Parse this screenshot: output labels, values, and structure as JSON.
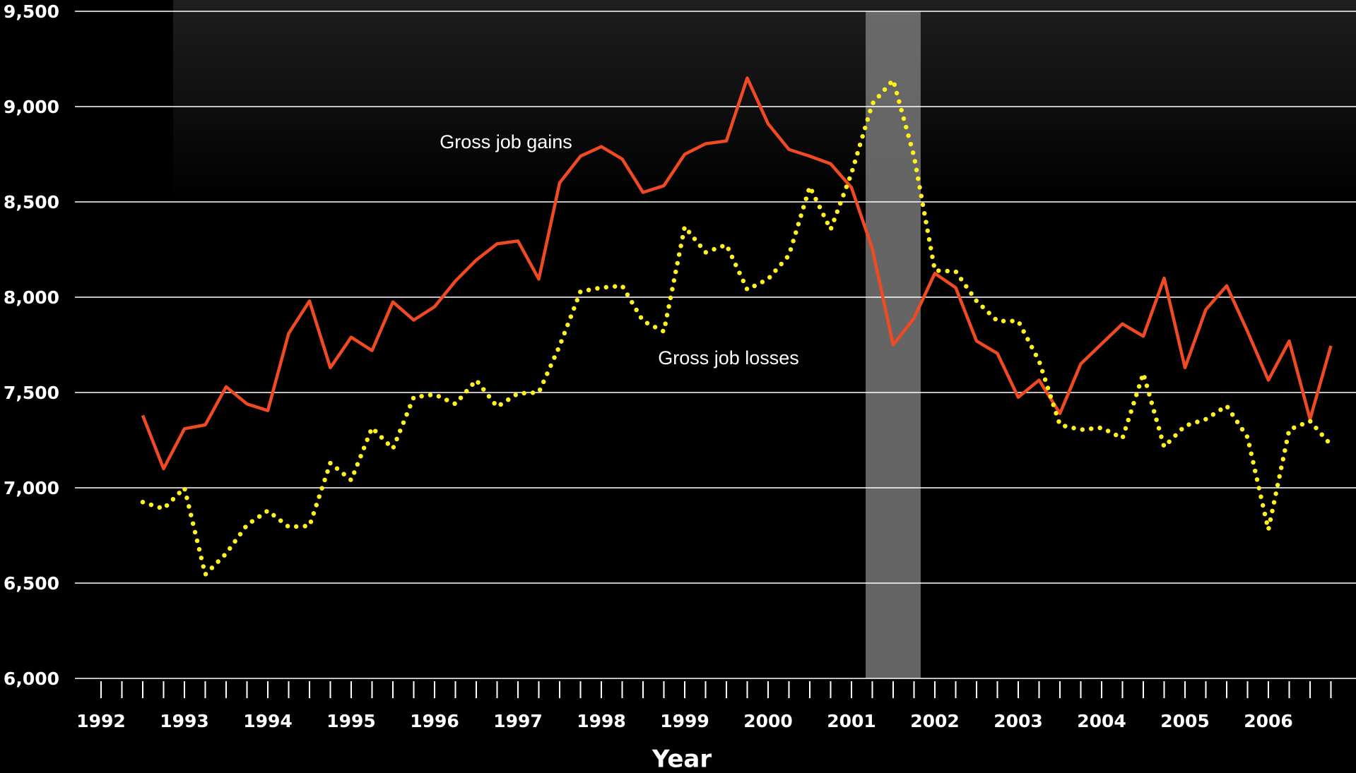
{
  "chart_data": {
    "type": "line",
    "x_label": "Year",
    "x": [
      1992.5,
      1992.75,
      1993,
      1993.25,
      1993.5,
      1993.75,
      1994,
      1994.25,
      1994.5,
      1994.75,
      1995,
      1995.25,
      1995.5,
      1995.75,
      1996,
      1996.25,
      1996.5,
      1996.75,
      1997,
      1997.25,
      1997.5,
      1997.75,
      1998,
      1998.25,
      1998.5,
      1998.75,
      1999,
      1999.25,
      1999.5,
      1999.75,
      2000,
      2000.25,
      2000.5,
      2000.75,
      2001,
      2001.25,
      2001.5,
      2001.75,
      2002,
      2002.25,
      2002.5,
      2002.75,
      2003,
      2003.25,
      2003.5,
      2003.75,
      2004,
      2004.25,
      2004.5,
      2004.75,
      2005,
      2005.25,
      2005.5,
      2005.75,
      2006,
      2006.25,
      2006.5,
      2006.75
    ],
    "series": [
      {
        "name": "Gross job gains",
        "color": "#f04a23",
        "style": "solid",
        "values": [
          7380,
          7100,
          7310,
          7330,
          7530,
          7440,
          7405,
          7810,
          7980,
          7630,
          7790,
          7720,
          7975,
          7880,
          7950,
          8085,
          8195,
          8280,
          8295,
          8095,
          8600,
          8740,
          8790,
          8725,
          8550,
          8585,
          8750,
          8805,
          8820,
          9150,
          8910,
          8775,
          8740,
          8700,
          8575,
          8255,
          7750,
          7890,
          8125,
          8050,
          7770,
          7705,
          7475,
          7565,
          7390,
          7650,
          7755,
          7860,
          7795,
          8100,
          7630,
          7935,
          8060,
          7820,
          7565,
          7770,
          7360,
          7745
        ]
      },
      {
        "name": "Gross job losses",
        "color": "#fff21a",
        "style": "dotted",
        "values": [
          6925,
          6890,
          7000,
          6545,
          6655,
          6805,
          6880,
          6795,
          6800,
          7130,
          7040,
          7315,
          7205,
          7475,
          7490,
          7440,
          7565,
          7425,
          7495,
          7500,
          7745,
          8030,
          8050,
          8060,
          7875,
          7820,
          8370,
          8235,
          8275,
          8040,
          8095,
          8220,
          8580,
          8355,
          8650,
          9015,
          9140,
          8740,
          8140,
          8135,
          7980,
          7875,
          7875,
          7665,
          7330,
          7305,
          7315,
          7260,
          7600,
          7215,
          7325,
          7360,
          7430,
          7265,
          6780,
          7305,
          7350,
          7225
        ]
      }
    ],
    "shaded_region": [
      2001.17,
      2001.83
    ],
    "xlim": [
      1991.75,
      2007
    ],
    "xticks": [
      1992,
      1993,
      1994,
      1995,
      1996,
      1997,
      1998,
      1999,
      2000,
      2001,
      2002,
      2003,
      2004,
      2005,
      2006
    ],
    "minor_xticks": [
      1992.25,
      1992.5,
      1992.75,
      1993.25,
      1993.5,
      1993.75,
      1994.25,
      1994.5,
      1994.75,
      1995.25,
      1995.5,
      1995.75,
      1996.25,
      1996.5,
      1996.75,
      1997.25,
      1997.5,
      1997.75,
      1998.25,
      1998.5,
      1998.75,
      1999.25,
      1999.5,
      1999.75,
      2000.25,
      2000.5,
      2000.75,
      2001.25,
      2001.5,
      2001.75,
      2002.25,
      2002.5,
      2002.75,
      2003.25,
      2003.5,
      2003.75,
      2004.25,
      2004.5,
      2004.75,
      2005.25,
      2005.5,
      2005.75,
      2006.25,
      2006.5,
      2006.75
    ],
    "ylim": [
      6000,
      9500
    ],
    "yticks": [
      {
        "value": 6000,
        "label": "6,000"
      },
      {
        "value": 6500,
        "label": "6,500"
      },
      {
        "value": 7000,
        "label": "7,000"
      },
      {
        "value": 7500,
        "label": "7,500"
      },
      {
        "value": 8000,
        "label": "8,000"
      },
      {
        "value": 8500,
        "label": "8,500"
      },
      {
        "value": 9000,
        "label": "9,000"
      },
      {
        "value": 9500,
        "label": "9,500"
      }
    ],
    "grid": true
  }
}
